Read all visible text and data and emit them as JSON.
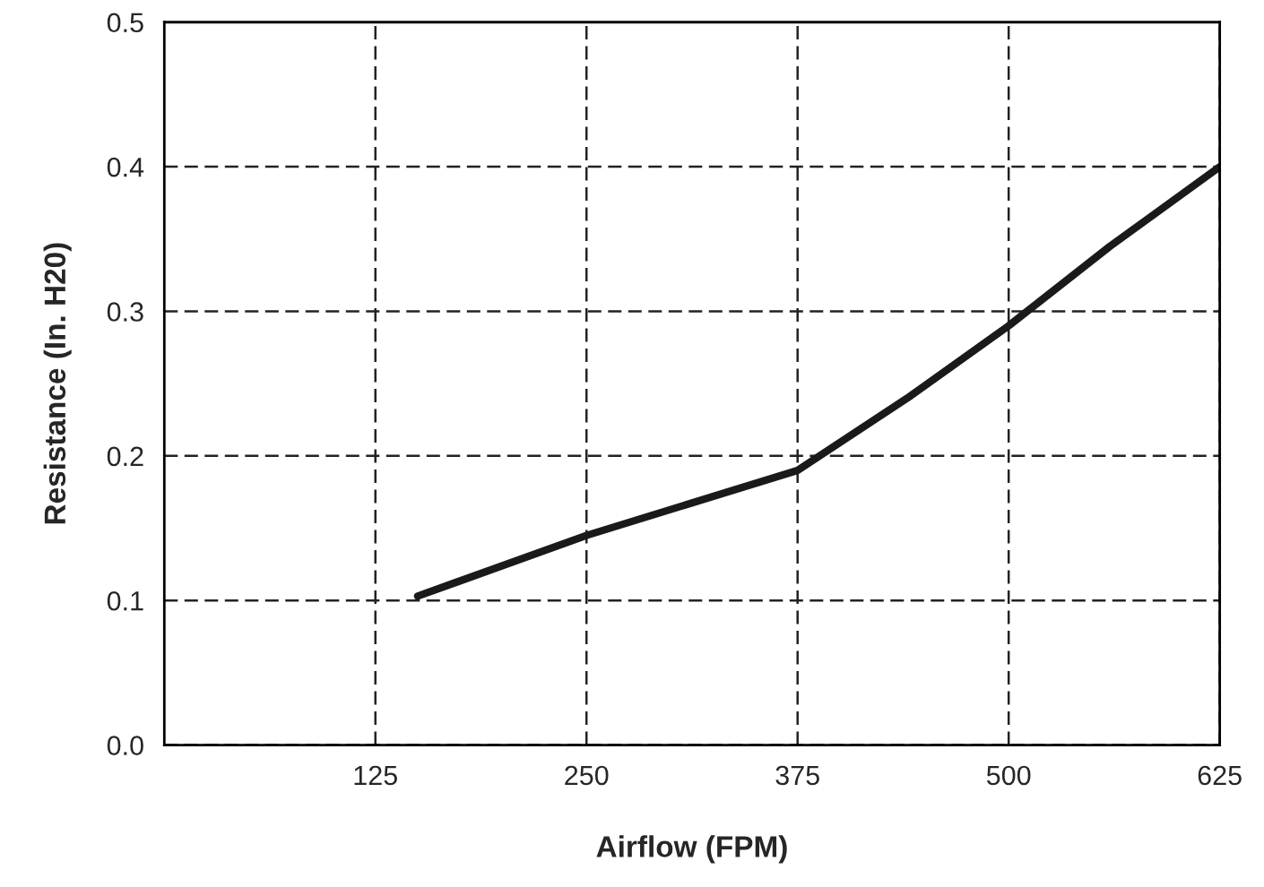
{
  "chart_data": {
    "type": "line",
    "xlabel": "Airflow (FPM)",
    "ylabel": "Resistance (In. H20)",
    "x": [
      150,
      250,
      375,
      440,
      500,
      560,
      625
    ],
    "series": [
      {
        "color": "#1a1a1a",
        "values": [
          0.103,
          0.145,
          0.19,
          0.24,
          0.29,
          0.345,
          0.4
        ]
      }
    ],
    "xlim": [
      0,
      625
    ],
    "xticks": [
      125,
      250,
      375,
      500,
      625
    ],
    "ylim": [
      0,
      0.5
    ],
    "yticks": [
      {
        "value": 0,
        "label": "0.0"
      },
      {
        "value": 0.1,
        "label": "0.1"
      },
      {
        "value": 0.2,
        "label": "0.2"
      },
      {
        "value": 0.3,
        "label": "0.3"
      },
      {
        "value": 0.4,
        "label": "0.4"
      },
      {
        "value": 0.5,
        "label": "0.5"
      }
    ],
    "grid": true,
    "line_style": "solid",
    "marker": "none",
    "legend": false
  }
}
